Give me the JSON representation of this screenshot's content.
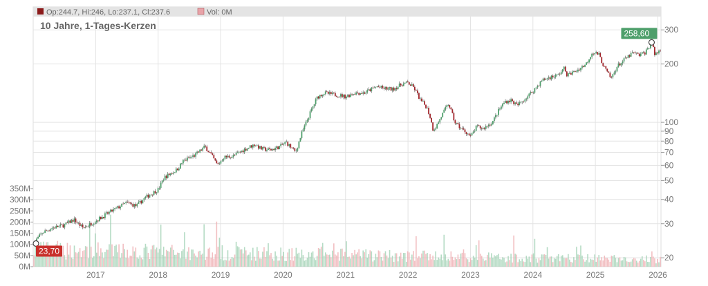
{
  "legend": {
    "ohlc_label": "Op:244.7, Hi:246, Lo:237.1, Cl:237.6",
    "volume_label": "Vol: 0M"
  },
  "chart_data": {
    "type": "candlestick",
    "title": "10 Jahre, 1-Tages-Kerzen",
    "price_axis": {
      "scale": "log",
      "range": [
        18,
        340
      ],
      "ticks": [
        20,
        30,
        40,
        50,
        60,
        70,
        80,
        90,
        100,
        200,
        300
      ]
    },
    "volume_axis": {
      "range": [
        0,
        350
      ],
      "unit": "M",
      "ticks": [
        0,
        50,
        100,
        150,
        200,
        250,
        300,
        350
      ],
      "tick_labels": [
        "0M",
        "50M",
        "100M",
        "150M",
        "200M",
        "250M",
        "300M",
        "350M"
      ]
    },
    "x_axis": {
      "range": [
        2016.0,
        2026.05
      ],
      "ticks": [
        2017,
        2018,
        2019,
        2020,
        2021,
        2022,
        2023,
        2024,
        2025,
        2026
      ]
    },
    "grid": true,
    "start_label": {
      "x": 2016.0,
      "value": 23.7,
      "text": "23,70"
    },
    "end_label": {
      "x": 2025.9,
      "value": 258.6,
      "text": "258,60"
    },
    "price_path": [
      [
        2016.0,
        23.7
      ],
      [
        2016.15,
        27
      ],
      [
        2016.3,
        28.5
      ],
      [
        2016.5,
        29.5
      ],
      [
        2016.65,
        31.5
      ],
      [
        2016.8,
        28.5
      ],
      [
        2017.0,
        31
      ],
      [
        2017.2,
        34
      ],
      [
        2017.4,
        37
      ],
      [
        2017.5,
        38.5
      ],
      [
        2017.65,
        37
      ],
      [
        2017.8,
        41
      ],
      [
        2018.0,
        45
      ],
      [
        2018.1,
        52
      ],
      [
        2018.3,
        57
      ],
      [
        2018.4,
        63
      ],
      [
        2018.6,
        68
      ],
      [
        2018.75,
        75
      ],
      [
        2018.85,
        68
      ],
      [
        2018.95,
        60
      ],
      [
        2019.05,
        66
      ],
      [
        2019.2,
        67
      ],
      [
        2019.4,
        73
      ],
      [
        2019.55,
        77
      ],
      [
        2019.65,
        73
      ],
      [
        2019.8,
        72
      ],
      [
        2019.95,
        75
      ],
      [
        2020.05,
        79
      ],
      [
        2020.15,
        73
      ],
      [
        2020.2,
        70
      ],
      [
        2020.3,
        88
      ],
      [
        2020.45,
        115
      ],
      [
        2020.55,
        135
      ],
      [
        2020.65,
        142
      ],
      [
        2020.75,
        140
      ],
      [
        2020.9,
        138
      ],
      [
        2021.0,
        136
      ],
      [
        2021.15,
        142
      ],
      [
        2021.3,
        142
      ],
      [
        2021.5,
        153
      ],
      [
        2021.6,
        150
      ],
      [
        2021.75,
        148
      ],
      [
        2021.9,
        157
      ],
      [
        2022.0,
        160
      ],
      [
        2022.1,
        150
      ],
      [
        2022.2,
        130
      ],
      [
        2022.3,
        120
      ],
      [
        2022.35,
        108
      ],
      [
        2022.4,
        92
      ],
      [
        2022.45,
        95
      ],
      [
        2022.55,
        110
      ],
      [
        2022.65,
        125
      ],
      [
        2022.75,
        100
      ],
      [
        2022.85,
        93
      ],
      [
        2022.95,
        88
      ],
      [
        2023.0,
        84
      ],
      [
        2023.1,
        95
      ],
      [
        2023.2,
        93
      ],
      [
        2023.35,
        100
      ],
      [
        2023.45,
        115
      ],
      [
        2023.55,
        128
      ],
      [
        2023.65,
        130
      ],
      [
        2023.75,
        122
      ],
      [
        2023.9,
        135
      ],
      [
        2024.0,
        145
      ],
      [
        2024.15,
        165
      ],
      [
        2024.25,
        170
      ],
      [
        2024.4,
        175
      ],
      [
        2024.5,
        190
      ],
      [
        2024.55,
        175
      ],
      [
        2024.7,
        185
      ],
      [
        2024.85,
        200
      ],
      [
        2024.95,
        230
      ],
      [
        2025.05,
        225
      ],
      [
        2025.15,
        190
      ],
      [
        2025.25,
        168
      ],
      [
        2025.35,
        195
      ],
      [
        2025.5,
        215
      ],
      [
        2025.6,
        228
      ],
      [
        2025.7,
        222
      ],
      [
        2025.8,
        230
      ],
      [
        2025.9,
        258.6
      ],
      [
        2025.95,
        224
      ],
      [
        2026.05,
        237.6
      ]
    ]
  }
}
